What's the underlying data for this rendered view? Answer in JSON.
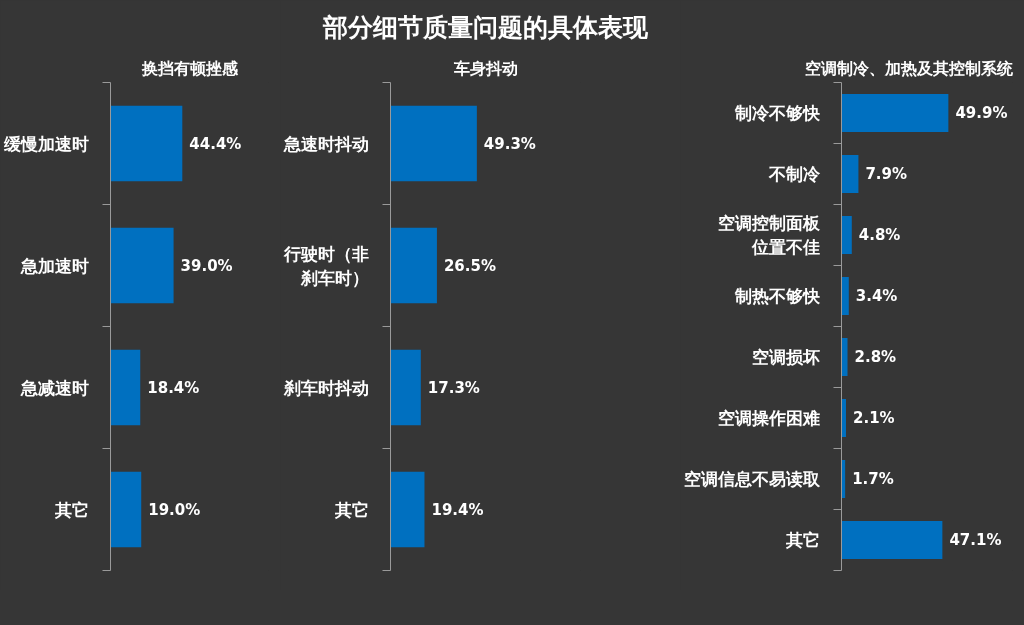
{
  "chart_data": [
    {
      "type": "bar",
      "orientation": "horizontal",
      "subtitle": "换挡有顿挫感",
      "categories": [
        "缓慢加速时",
        "急加速时",
        "急减速时",
        "其它"
      ],
      "values": [
        44.4,
        39.0,
        18.4,
        19.0
      ],
      "value_labels": [
        "44.4%",
        "39.0%",
        "18.4%",
        "19.0%"
      ],
      "color": "#0070c0"
    },
    {
      "type": "bar",
      "orientation": "horizontal",
      "title": "部分细节质量问题的具体表现",
      "subtitle": "车身抖动",
      "categories": [
        "急速时抖动",
        "行驶时（非刹车时）",
        "刹车时抖动",
        "其它"
      ],
      "values": [
        49.3,
        26.5,
        17.3,
        19.4
      ],
      "value_labels": [
        "49.3%",
        "26.5%",
        "17.3%",
        "19.4%"
      ],
      "color": "#0070c0"
    },
    {
      "type": "bar",
      "orientation": "horizontal",
      "subtitle": "空调制冷、加热及其控制系统",
      "categories": [
        "制冷不够快",
        "不制冷",
        "空调控制面板位置不佳",
        "制热不够快",
        "空调损坏",
        "空调操作困难",
        "空调信息不易读取",
        "其它"
      ],
      "values": [
        49.9,
        7.9,
        4.8,
        3.4,
        2.8,
        2.1,
        1.7,
        47.1
      ],
      "value_labels": [
        "49.9%",
        "7.9%",
        "4.8%",
        "3.4%",
        "2.8%",
        "2.1%",
        "1.7%",
        "47.1%"
      ],
      "color": "#0070c0"
    }
  ]
}
